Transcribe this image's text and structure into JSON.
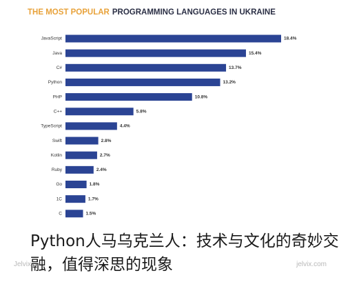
{
  "chart_data": {
    "type": "bar",
    "orientation": "horizontal",
    "title_highlight": "THE MOST POPULAR",
    "title": "PROGRAMMING LANGUAGES IN UKRAINE",
    "categories": [
      "JavaScript",
      "Java",
      "C#",
      "Python",
      "PHP",
      "C++",
      "TypeScript",
      "Swift",
      "Kotlin",
      "Ruby",
      "Go",
      "1C",
      "C"
    ],
    "values": [
      18.4,
      15.4,
      13.7,
      13.2,
      10.8,
      5.8,
      4.4,
      2.8,
      2.7,
      2.4,
      1.8,
      1.7,
      1.5
    ],
    "value_labels": [
      "18.4%",
      "15.4%",
      "13.7%",
      "13.2%",
      "10.8%",
      "5.8%",
      "4.4%",
      "2.8%",
      "2.7%",
      "2.4%",
      "1.8%",
      "1.7%",
      "1.5%"
    ],
    "color": "#2b4494"
  },
  "overlay_text": "Python人马乌克兰人：技术与文化的奇妙交融，值得深思的现象",
  "watermarks": [
    "Jelvix",
    "jelvix.com"
  ]
}
